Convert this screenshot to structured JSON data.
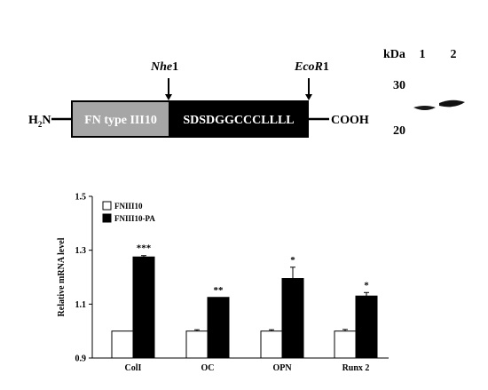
{
  "construct": {
    "n_terminus_main": "H",
    "n_terminus_sub": "2",
    "n_terminus_tail": "N",
    "domain_label": "FN type III10",
    "peptide_label": "SDSDGGCCCLLLL",
    "c_terminus": "COOH",
    "site1_italic": "Nhe",
    "site1_suffix": "1",
    "site2_italic": "EcoR",
    "site2_suffix": "1"
  },
  "blot": {
    "unit_label": "kDa",
    "lanes": [
      "1",
      "2"
    ],
    "markers": [
      "30",
      "20"
    ]
  },
  "chart_data": {
    "type": "bar",
    "ylabel": "Relative mRNA level",
    "xlabel": "",
    "ylim": [
      0.9,
      1.5
    ],
    "yticks": [
      "0.9",
      "1.1",
      "1.3",
      "1.5"
    ],
    "categories": [
      "ColI",
      "OC",
      "OPN",
      "Runx 2"
    ],
    "legend_position": "top-left",
    "series": [
      {
        "name": "FNIII10",
        "color": "#ffffff",
        "values": [
          1.0,
          1.0,
          1.0,
          1.0
        ],
        "errors": [
          0.0,
          0.005,
          0.005,
          0.006
        ]
      },
      {
        "name": "FNIII10-PA",
        "color": "#000000",
        "values": [
          1.275,
          1.125,
          1.195,
          1.13
        ],
        "errors": [
          0.005,
          0.0,
          0.042,
          0.013
        ]
      }
    ],
    "significance": [
      "***",
      "**",
      "*",
      "*"
    ]
  }
}
